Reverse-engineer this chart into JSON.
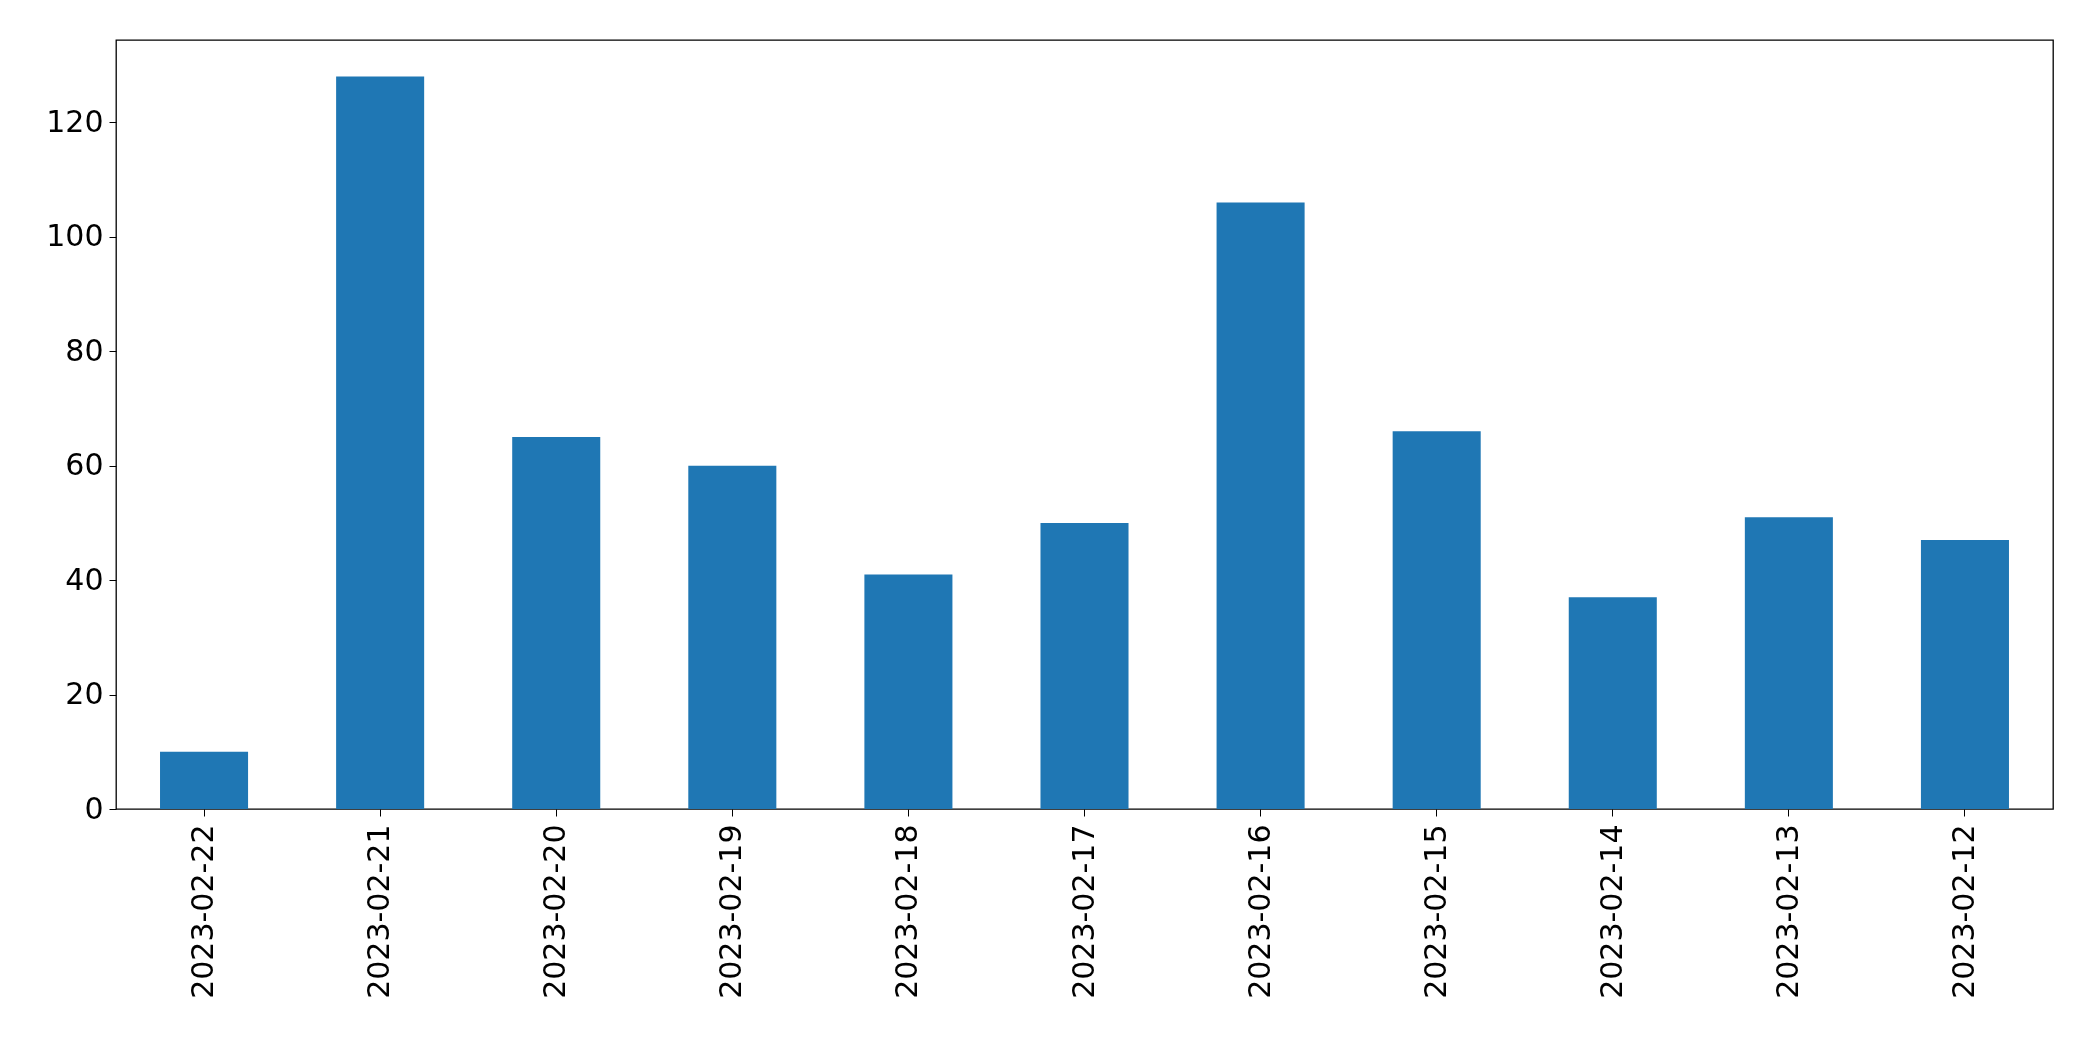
{
  "chart_data": {
    "type": "bar",
    "categories": [
      "2023-02-22",
      "2023-02-21",
      "2023-02-20",
      "2023-02-19",
      "2023-02-18",
      "2023-02-17",
      "2023-02-16",
      "2023-02-15",
      "2023-02-14",
      "2023-02-13",
      "2023-02-12"
    ],
    "values": [
      10,
      128,
      65,
      60,
      41,
      50,
      106,
      66,
      37,
      51,
      47
    ],
    "color": "#1f77b4",
    "ylim": [
      0,
      134.4
    ],
    "yticks": [
      0,
      20,
      40,
      60,
      80,
      100,
      120
    ],
    "grid": false
  }
}
